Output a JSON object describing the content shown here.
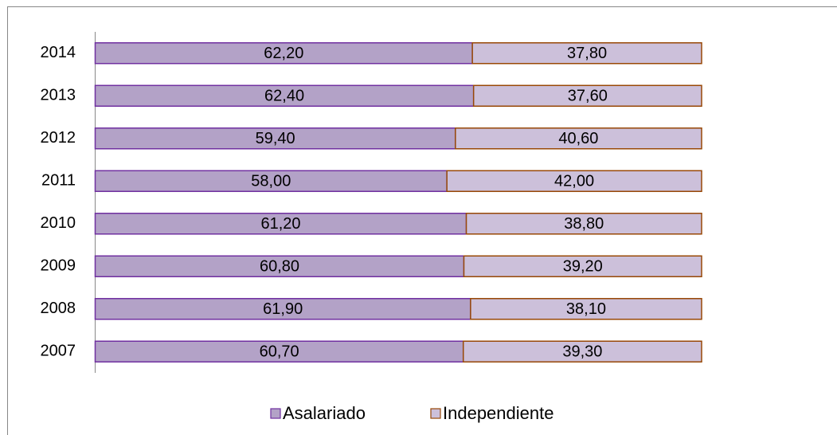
{
  "chart_data": {
    "type": "stacked_bar_horizontal",
    "categories": [
      "2007",
      "2008",
      "2009",
      "2010",
      "2011",
      "2012",
      "2013",
      "2014"
    ],
    "series": [
      {
        "name": "Asalariado",
        "color": "#b3a2c7",
        "edge": "#7030a0",
        "values": [
          60.7,
          61.9,
          60.8,
          61.2,
          58.0,
          59.4,
          62.4,
          62.2
        ],
        "value_labels": [
          "60,70",
          "61,90",
          "60,80",
          "61,20",
          "58,00",
          "59,40",
          "62,40",
          "62,20"
        ]
      },
      {
        "name": "Independiente",
        "color": "#ccc0da",
        "edge": "#984807",
        "values": [
          39.3,
          38.1,
          39.2,
          38.8,
          42.0,
          40.6,
          37.6,
          37.8
        ],
        "value_labels": [
          "39,30",
          "38,10",
          "39,20",
          "38,80",
          "42,00",
          "40,60",
          "37,60",
          "37,80"
        ]
      }
    ],
    "xlim": [
      0,
      100
    ],
    "legend": "bottom"
  }
}
